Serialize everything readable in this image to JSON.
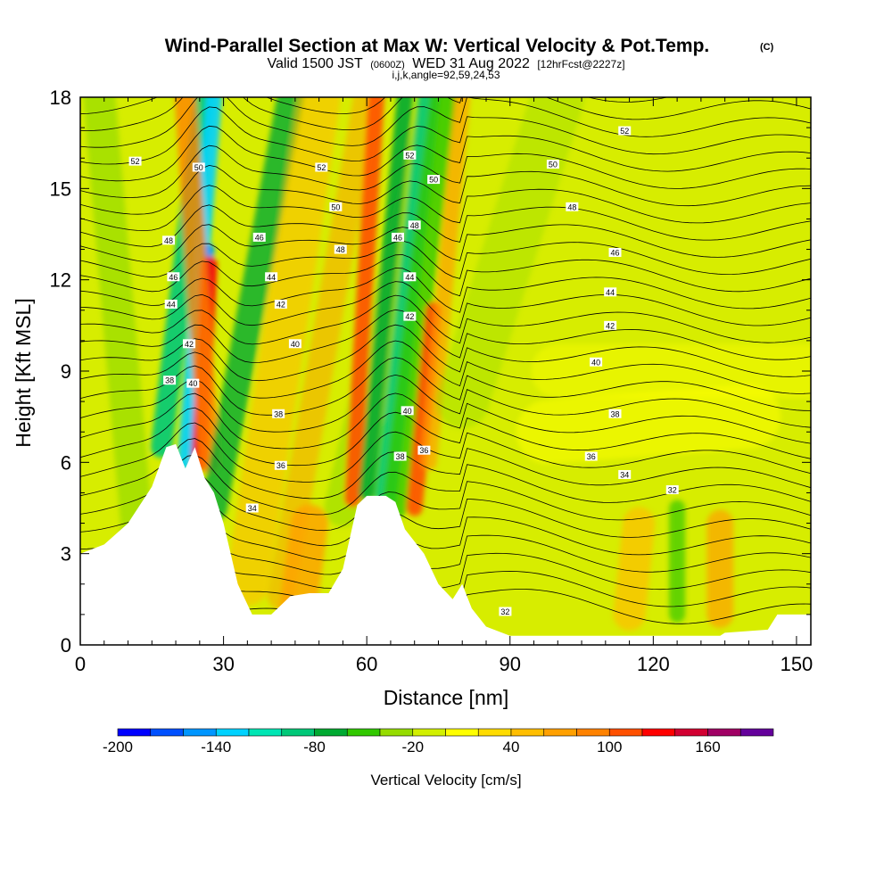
{
  "chart_data": {
    "type": "heatmap",
    "title": "Wind-Parallel Section at Max W: Vertical Velocity & Pot.Temp.",
    "copyright_mark": "(C)",
    "subtitle_valid": "Valid 1500 JST",
    "subtitle_utc": "(0600Z)",
    "subtitle_date": "WED 31 Aug 2022",
    "subtitle_fcst": "[12hrFcst@2227z]",
    "subtitle_indices": "i,j,k,angle=92,59,24,53",
    "xlabel": "Distance [nm]",
    "ylabel": "Height [Kft MSL]",
    "xlim": [
      0,
      153
    ],
    "ylim": [
      0,
      18
    ],
    "x_ticks": [
      "0",
      "30",
      "60",
      "90",
      "120",
      "150"
    ],
    "x_tick_values": [
      0,
      30,
      60,
      90,
      120,
      150
    ],
    "y_ticks": [
      "0",
      "3",
      "6",
      "9",
      "12",
      "15",
      "18"
    ],
    "y_tick_values": [
      0,
      3,
      6,
      9,
      12,
      15,
      18
    ],
    "colorbar": {
      "label": "Vertical Velocity [cm/s]",
      "range": [
        -200,
        200
      ],
      "tick_labels": [
        "-200",
        "-140",
        "-80",
        "-20",
        "40",
        "100",
        "160"
      ],
      "tick_values": [
        -200,
        -140,
        -80,
        -20,
        40,
        100,
        160
      ],
      "colors": [
        "#0000ff",
        "#0050ff",
        "#0096ff",
        "#00d2ff",
        "#00e6b4",
        "#00c878",
        "#00aa32",
        "#32c800",
        "#96dc00",
        "#d2f000",
        "#ffff00",
        "#ffdc00",
        "#ffbe00",
        "#ffa000",
        "#ff8200",
        "#ff5000",
        "#ff0000",
        "#d20032",
        "#a00064",
        "#64009b"
      ]
    },
    "terrain_heights_kft": [
      [
        0,
        3.0
      ],
      [
        5,
        3.3
      ],
      [
        10,
        4.0
      ],
      [
        15,
        5.2
      ],
      [
        18,
        6.5
      ],
      [
        20,
        6.6
      ],
      [
        22,
        5.8
      ],
      [
        24,
        6.5
      ],
      [
        26,
        5.5
      ],
      [
        28,
        5.0
      ],
      [
        30,
        4.0
      ],
      [
        33,
        2.0
      ],
      [
        36,
        1.0
      ],
      [
        40,
        1.0
      ],
      [
        44,
        1.6
      ],
      [
        48,
        1.7
      ],
      [
        52,
        1.7
      ],
      [
        55,
        2.5
      ],
      [
        58,
        4.6
      ],
      [
        60,
        4.9
      ],
      [
        62,
        4.9
      ],
      [
        64,
        4.9
      ],
      [
        66,
        4.7
      ],
      [
        68,
        3.8
      ],
      [
        72,
        3.0
      ],
      [
        75,
        2.0
      ],
      [
        78,
        1.5
      ],
      [
        80,
        2.0
      ],
      [
        82,
        1.2
      ],
      [
        85,
        0.6
      ],
      [
        90,
        0.3
      ],
      [
        95,
        0.3
      ],
      [
        110,
        0.3
      ],
      [
        125,
        0.3
      ],
      [
        134,
        0.3
      ],
      [
        135,
        0.4
      ],
      [
        144,
        0.5
      ],
      [
        146,
        1.0
      ],
      [
        153,
        1.0
      ]
    ],
    "theta_contour_labels": [
      "52",
      "50",
      "48",
      "46",
      "44",
      "42",
      "40",
      "38",
      "36",
      "34",
      "32"
    ],
    "theta_label_marks": [
      {
        "t": "52",
        "x": 11.5,
        "y": 15.9
      },
      {
        "t": "50",
        "x": 24.8,
        "y": 15.7
      },
      {
        "t": "48",
        "x": 18.5,
        "y": 13.3
      },
      {
        "t": "46",
        "x": 19.5,
        "y": 12.1
      },
      {
        "t": "44",
        "x": 19.0,
        "y": 11.2
      },
      {
        "t": "42",
        "x": 22.8,
        "y": 9.9
      },
      {
        "t": "40",
        "x": 23.6,
        "y": 8.6
      },
      {
        "t": "38",
        "x": 18.7,
        "y": 8.7
      },
      {
        "t": "52",
        "x": 50.5,
        "y": 15.7
      },
      {
        "t": "50",
        "x": 53.5,
        "y": 14.4
      },
      {
        "t": "48",
        "x": 54.5,
        "y": 13.0
      },
      {
        "t": "46",
        "x": 37.5,
        "y": 13.4
      },
      {
        "t": "44",
        "x": 40.0,
        "y": 12.1
      },
      {
        "t": "42",
        "x": 42.0,
        "y": 11.2
      },
      {
        "t": "40",
        "x": 45.0,
        "y": 9.9
      },
      {
        "t": "38",
        "x": 41.5,
        "y": 7.6
      },
      {
        "t": "36",
        "x": 42.0,
        "y": 5.9
      },
      {
        "t": "34",
        "x": 36.0,
        "y": 4.5
      },
      {
        "t": "52",
        "x": 69.0,
        "y": 16.1
      },
      {
        "t": "50",
        "x": 74.0,
        "y": 15.3
      },
      {
        "t": "48",
        "x": 70.0,
        "y": 13.8
      },
      {
        "t": "46",
        "x": 66.5,
        "y": 13.4
      },
      {
        "t": "44",
        "x": 69.0,
        "y": 12.1
      },
      {
        "t": "42",
        "x": 69.0,
        "y": 10.8
      },
      {
        "t": "40",
        "x": 68.5,
        "y": 7.7
      },
      {
        "t": "38",
        "x": 67.0,
        "y": 6.2
      },
      {
        "t": "36",
        "x": 72.0,
        "y": 6.4
      },
      {
        "t": "52",
        "x": 114.0,
        "y": 16.9
      },
      {
        "t": "50",
        "x": 99.0,
        "y": 15.8
      },
      {
        "t": "48",
        "x": 103.0,
        "y": 14.4
      },
      {
        "t": "46",
        "x": 112.0,
        "y": 12.9
      },
      {
        "t": "44",
        "x": 111.0,
        "y": 11.6
      },
      {
        "t": "42",
        "x": 111.0,
        "y": 10.5
      },
      {
        "t": "40",
        "x": 108.0,
        "y": 9.3
      },
      {
        "t": "38",
        "x": 112.0,
        "y": 7.6
      },
      {
        "t": "36",
        "x": 107.0,
        "y": 6.2
      },
      {
        "t": "34",
        "x": 114.0,
        "y": 5.6
      },
      {
        "t": "32",
        "x": 124.0,
        "y": 5.1
      },
      {
        "t": "32",
        "x": 89.0,
        "y": 1.1
      }
    ]
  },
  "colors": {
    "background_field": "#d7ed00",
    "terrain": "#ffffff",
    "contour": "#000000"
  }
}
